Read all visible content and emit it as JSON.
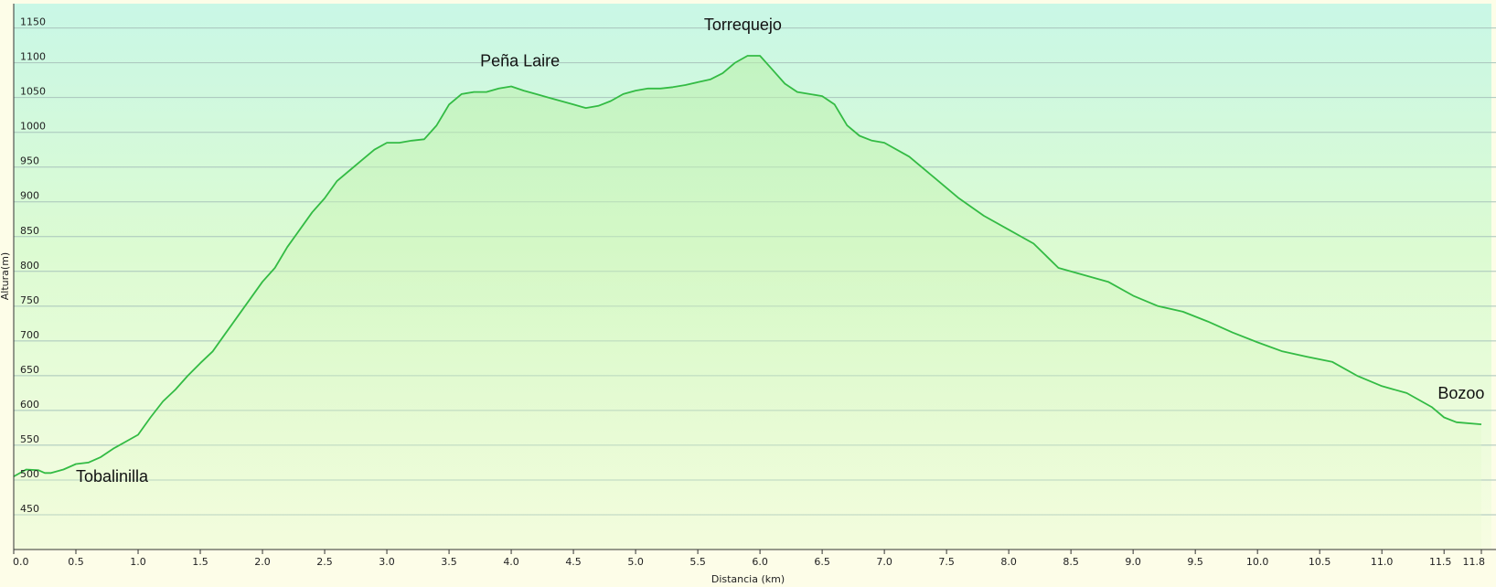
{
  "chart_data": {
    "type": "area",
    "title": "",
    "xlabel": "Distancia  (km)",
    "ylabel": "Altura(m)",
    "xlim": [
      0,
      11.8
    ],
    "ylim": [
      400,
      1185
    ],
    "grid": true,
    "legend": "none",
    "x_ticks": [
      "0.0",
      "0.5",
      "1.0",
      "1.5",
      "2.0",
      "2.5",
      "3.0",
      "3.5",
      "4.0",
      "4.5",
      "5.0",
      "5.5",
      "6.0",
      "6.5",
      "7.0",
      "7.5",
      "8.0",
      "8.5",
      "9.0",
      "9.5",
      "10.0",
      "10.5",
      "11.0",
      "11.5",
      "11.8"
    ],
    "y_ticks": [
      "450",
      "500",
      "550",
      "600",
      "650",
      "700",
      "750",
      "800",
      "850",
      "900",
      "950",
      "1000",
      "1050",
      "1100",
      "1150"
    ],
    "series": [
      {
        "x": [
          0.0,
          0.1,
          0.2,
          0.25,
          0.3,
          0.4,
          0.5,
          0.6,
          0.7,
          0.8,
          0.9,
          1.0,
          1.1,
          1.2,
          1.3,
          1.4,
          1.5,
          1.6,
          1.7,
          1.8,
          1.9,
          2.0,
          2.1,
          2.2,
          2.3,
          2.4,
          2.5,
          2.6,
          2.7,
          2.8,
          2.9,
          3.0,
          3.1,
          3.2,
          3.3,
          3.4,
          3.5,
          3.6,
          3.7,
          3.8,
          3.9,
          4.0,
          4.1,
          4.2,
          4.3,
          4.4,
          4.5,
          4.6,
          4.7,
          4.8,
          4.9,
          5.0,
          5.1,
          5.2,
          5.3,
          5.4,
          5.5,
          5.6,
          5.7,
          5.8,
          5.9,
          6.0,
          6.1,
          6.2,
          6.3,
          6.4,
          6.5,
          6.6,
          6.7,
          6.8,
          6.9,
          7.0,
          7.2,
          7.4,
          7.6,
          7.8,
          8.0,
          8.2,
          8.4,
          8.6,
          8.8,
          9.0,
          9.2,
          9.4,
          9.6,
          9.8,
          10.0,
          10.2,
          10.4,
          10.6,
          10.8,
          11.0,
          11.2,
          11.4,
          11.5,
          11.6,
          11.8
        ],
        "y": [
          505,
          515,
          514,
          510,
          510,
          515,
          523,
          525,
          533,
          545,
          555,
          565,
          590,
          613,
          630,
          650,
          668,
          685,
          710,
          735,
          760,
          785,
          805,
          835,
          860,
          885,
          905,
          930,
          945,
          960,
          975,
          985,
          985,
          988,
          990,
          1010,
          1040,
          1055,
          1058,
          1058,
          1063,
          1066,
          1060,
          1055,
          1050,
          1045,
          1040,
          1035,
          1038,
          1045,
          1055,
          1060,
          1063,
          1063,
          1065,
          1068,
          1072,
          1076,
          1085,
          1100,
          1110,
          1110,
          1090,
          1070,
          1058,
          1055,
          1052,
          1040,
          1010,
          995,
          988,
          985,
          965,
          935,
          905,
          880,
          860,
          840,
          805,
          795,
          785,
          765,
          750,
          742,
          728,
          712,
          698,
          685,
          677,
          670,
          650,
          635,
          625,
          605,
          590,
          583,
          580
        ],
        "color": "#33bb44"
      }
    ],
    "annotations": [
      {
        "text": "Tobalinilla",
        "x": 0.5,
        "y": 497
      },
      {
        "text": "Peña Laire",
        "x": 3.75,
        "y": 1095
      },
      {
        "text": "Torrequejo",
        "x": 5.55,
        "y": 1147
      },
      {
        "text": "Bozoo",
        "x": 11.45,
        "y": 617
      }
    ]
  }
}
